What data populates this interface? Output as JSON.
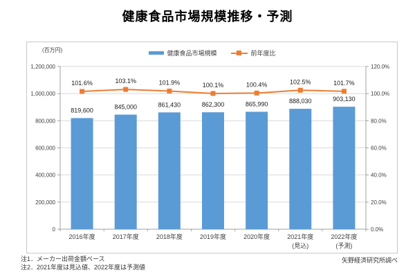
{
  "title": "健康食品市場規模推移・予測",
  "unit_label": "(百万円)",
  "legend": [
    {
      "label": "健康食品市場規模",
      "swatch": "bar"
    },
    {
      "label": "前年度比",
      "swatch": "line-square-marker"
    }
  ],
  "footnotes": [
    "注1．メーカー出荷金額ベース",
    "注2．2021年度は見込値、2022年度は予測値"
  ],
  "source": "矢野経済研究所調べ",
  "colors": {
    "bar": "#5B9BD5",
    "line": "#ED7D31",
    "grid": "#d9d9d9",
    "axis": "#a0a0a0",
    "tick_text": "#404040",
    "data_label": "#1a1a1a",
    "frame_border": "#c9c9c9"
  },
  "chart_data": {
    "type": "bar",
    "subtype": "combo-bar-line-dual-axis",
    "title": "健康食品市場規模推移・予測",
    "categories": [
      [
        "2016年度"
      ],
      [
        "2017年度"
      ],
      [
        "2018年度"
      ],
      [
        "2019年度"
      ],
      [
        "2020年度"
      ],
      [
        "2021年度",
        "(見込)"
      ],
      [
        "2022年度",
        "(予測)"
      ]
    ],
    "series": [
      {
        "name": "健康食品市場規模",
        "type": "bar",
        "axis": "left",
        "values": [
          819600,
          845000,
          861430,
          862300,
          865990,
          888030,
          903130
        ],
        "labels": [
          "819,600",
          "845,000",
          "861,430",
          "862,300",
          "865,990",
          "888,030",
          "903,130"
        ]
      },
      {
        "name": "前年度比",
        "type": "line",
        "axis": "right",
        "values": [
          101.6,
          103.1,
          101.9,
          100.1,
          100.4,
          102.5,
          101.7
        ],
        "labels": [
          "101.6%",
          "103.1%",
          "101.9%",
          "100.1%",
          "100.4%",
          "102.5%",
          "101.7%"
        ]
      }
    ],
    "left_axis": {
      "unit": "(百万円)",
      "min": 0,
      "max": 1200000,
      "step": 200000,
      "ticks": [
        "0",
        "200,000",
        "400,000",
        "600,000",
        "800,000",
        "1,000,000",
        "1,200,000"
      ]
    },
    "right_axis": {
      "min": 0,
      "max": 120,
      "step": 20,
      "ticks": [
        "0.0%",
        "20.0%",
        "40.0%",
        "60.0%",
        "80.0%",
        "100.0%",
        "120.0%"
      ]
    },
    "grid": true,
    "legend_position": "top-center"
  }
}
